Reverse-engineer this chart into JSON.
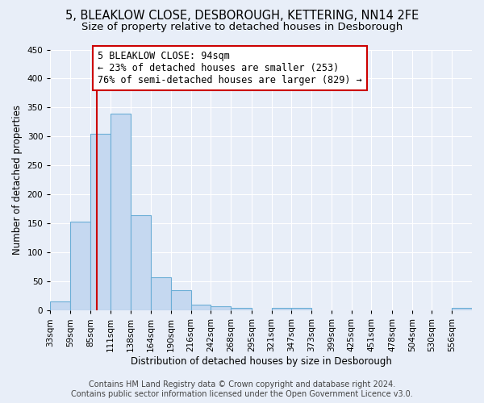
{
  "title1": "5, BLEAKLOW CLOSE, DESBOROUGH, KETTERING, NN14 2FE",
  "title2": "Size of property relative to detached houses in Desborough",
  "xlabel": "Distribution of detached houses by size in Desborough",
  "ylabel": "Number of detached properties",
  "footer1": "Contains HM Land Registry data © Crown copyright and database right 2024.",
  "footer2": "Contains public sector information licensed under the Open Government Licence v3.0.",
  "bin_labels": [
    "33sqm",
    "59sqm",
    "85sqm",
    "111sqm",
    "138sqm",
    "164sqm",
    "190sqm",
    "216sqm",
    "242sqm",
    "268sqm",
    "295sqm",
    "321sqm",
    "347sqm",
    "373sqm",
    "399sqm",
    "425sqm",
    "451sqm",
    "478sqm",
    "504sqm",
    "530sqm",
    "556sqm"
  ],
  "bin_edges": [
    33,
    59,
    85,
    111,
    138,
    164,
    190,
    216,
    242,
    268,
    295,
    321,
    347,
    373,
    399,
    425,
    451,
    478,
    504,
    530,
    556
  ],
  "bar_heights": [
    15,
    153,
    305,
    340,
    165,
    57,
    35,
    10,
    7,
    5,
    0,
    5,
    5,
    0,
    0,
    0,
    0,
    0,
    0,
    0,
    5
  ],
  "bar_color": "#c5d8f0",
  "bar_edge_color": "#6baed6",
  "bg_color": "#e8eef8",
  "plot_bg_color": "#e8eef8",
  "grid_color": "#ffffff",
  "property_size": 94,
  "vline_color": "#cc0000",
  "annotation_line1": "5 BLEAKLOW CLOSE: 94sqm",
  "annotation_line2": "← 23% of detached houses are smaller (253)",
  "annotation_line3": "76% of semi-detached houses are larger (829) →",
  "annotation_box_color": "#cc0000",
  "annotation_text_color": "#000000",
  "ylim": [
    0,
    450
  ],
  "yticks": [
    0,
    50,
    100,
    150,
    200,
    250,
    300,
    350,
    400,
    450
  ],
  "title_fontsize": 10.5,
  "subtitle_fontsize": 9.5,
  "axis_label_fontsize": 8.5,
  "tick_fontsize": 7.5,
  "footer_fontsize": 7,
  "annot_fontsize": 8.5
}
